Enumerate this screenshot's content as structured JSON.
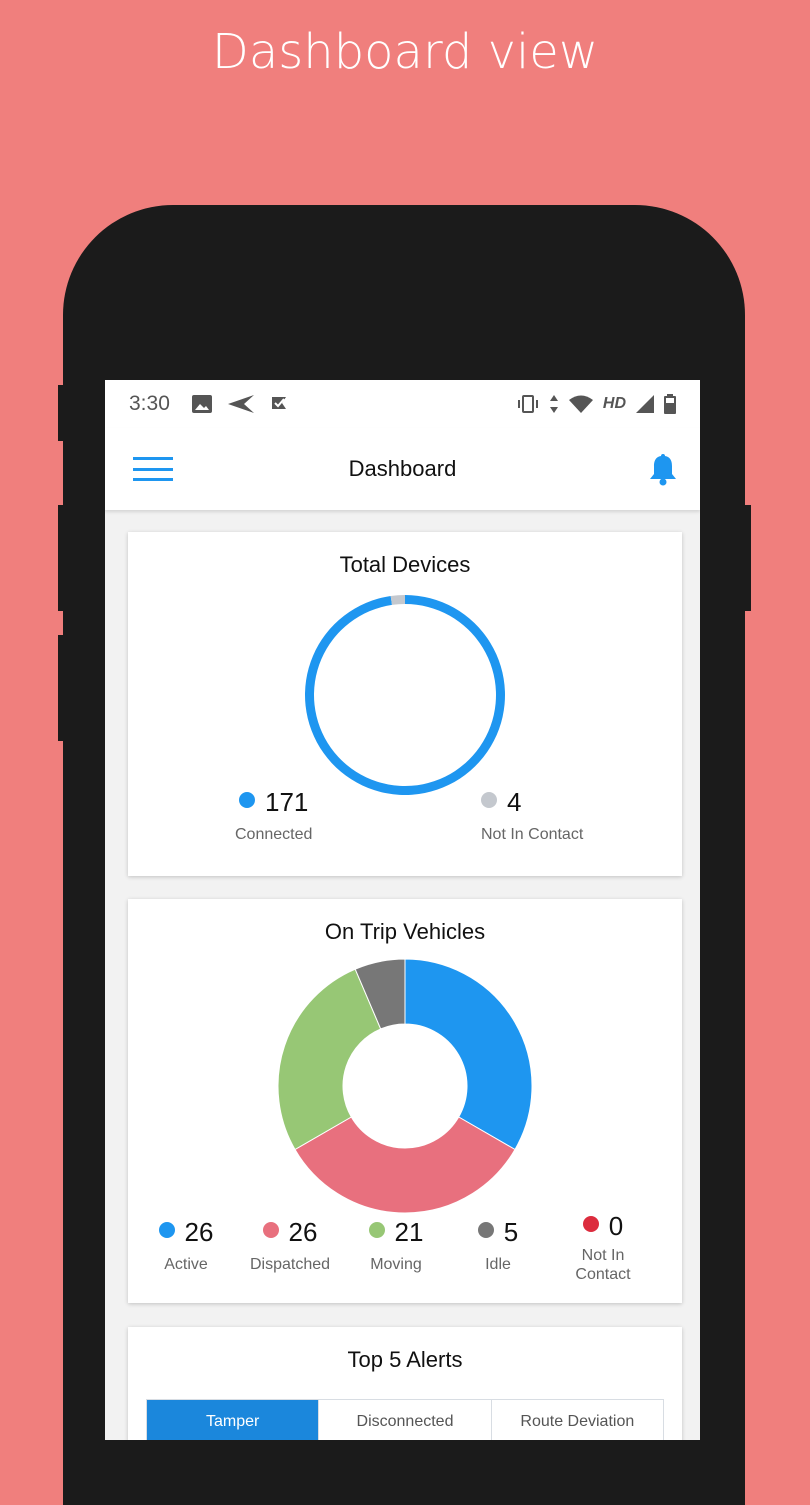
{
  "caption": "Dashboard view",
  "status_bar": {
    "time": "3:30",
    "network": "HD",
    "icons": [
      "image-icon",
      "send-icon",
      "check-flag-icon",
      "vibrate-icon",
      "data-arrows-icon",
      "wifi-icon",
      "signal-icon",
      "battery-icon"
    ]
  },
  "app_bar": {
    "title": "Dashboard",
    "icons": [
      "hamburger-menu-icon",
      "bell-icon"
    ],
    "accent": "#1e96f0"
  },
  "total_devices": {
    "title": "Total Devices",
    "items": [
      {
        "value": "171",
        "label": "Connected",
        "color": "#1e96f0"
      },
      {
        "value": "4",
        "label": "Not In Contact",
        "color": "#c4c8ce"
      }
    ]
  },
  "on_trip": {
    "title": "On Trip Vehicles",
    "items": [
      {
        "value": "26",
        "label": "Active",
        "color": "#1e96f0"
      },
      {
        "value": "26",
        "label": "Dispatched",
        "color": "#e8707e"
      },
      {
        "value": "21",
        "label": "Moving",
        "color": "#97c775"
      },
      {
        "value": "5",
        "label": "Idle",
        "color": "#777777"
      },
      {
        "value": "0",
        "label": "Not In Contact",
        "color": "#dc2c3e"
      }
    ]
  },
  "alerts": {
    "title": "Top 5 Alerts",
    "tabs": [
      "Tamper",
      "Disconnected",
      "Route Deviation"
    ],
    "active_tab": "Tamper"
  },
  "chart_data": [
    {
      "type": "pie",
      "title": "Total Devices",
      "categories": [
        "Connected",
        "Not In Contact"
      ],
      "values": [
        171,
        4
      ]
    },
    {
      "type": "pie",
      "title": "On Trip Vehicles",
      "categories": [
        "Active",
        "Dispatched",
        "Moving",
        "Idle",
        "Not In Contact"
      ],
      "values": [
        26,
        26,
        21,
        5,
        0
      ]
    }
  ]
}
